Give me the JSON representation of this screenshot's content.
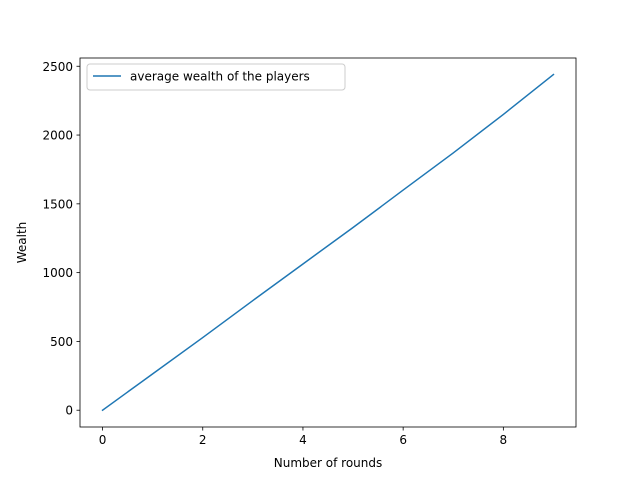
{
  "chart_data": {
    "type": "line",
    "title": "",
    "xlabel": "Number of rounds",
    "ylabel": "Wealth",
    "xlim": [
      -0.45,
      9.45
    ],
    "ylim": [
      -122,
      2560
    ],
    "xticks": [
      0,
      2,
      4,
      6,
      8
    ],
    "yticks": [
      0,
      500,
      1000,
      1500,
      2000,
      2500
    ],
    "grid": false,
    "legend": "top-left",
    "series": [
      {
        "name": "average wealth of the players",
        "color": "#1f77b4",
        "x": [
          0,
          1,
          2,
          3,
          4,
          5,
          6,
          7,
          8,
          9
        ],
        "y": [
          0,
          264,
          528,
          797,
          1063,
          1328,
          1600,
          1870,
          2150,
          2440
        ]
      }
    ]
  }
}
